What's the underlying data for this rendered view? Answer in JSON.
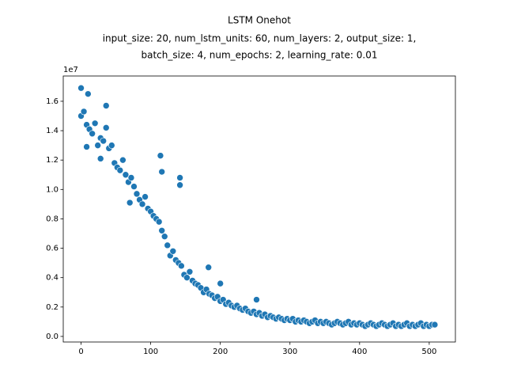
{
  "chart_data": {
    "type": "scatter",
    "title": "LSTM Onehot",
    "subtitle": [
      "input_size: 20, num_lstm_units: 60, num_layers: 2, output_size: 1,",
      "batch_size: 4, num_epochs: 2, learning_rate: 0.01"
    ],
    "offset_label": "1e7",
    "color": "#1f77b4",
    "x": [
      0,
      4,
      8,
      12,
      16,
      20,
      24,
      28,
      32,
      36,
      40,
      44,
      48,
      52,
      56,
      60,
      64,
      68,
      72,
      76,
      80,
      84,
      88,
      92,
      96,
      100,
      104,
      108,
      112,
      116,
      120,
      124,
      128,
      132,
      136,
      140,
      144,
      148,
      152,
      156,
      160,
      164,
      168,
      172,
      176,
      180,
      184,
      188,
      192,
      196,
      200,
      204,
      208,
      212,
      216,
      220,
      224,
      228,
      232,
      236,
      240,
      244,
      248,
      252,
      256,
      260,
      264,
      268,
      272,
      276,
      280,
      284,
      288,
      292,
      296,
      300,
      304,
      308,
      312,
      316,
      320,
      324,
      328,
      332,
      336,
      340,
      344,
      348,
      352,
      356,
      360,
      364,
      368,
      372,
      376,
      380,
      384,
      388,
      392,
      396,
      400,
      404,
      408,
      412,
      416,
      420,
      424,
      428,
      432,
      436,
      440,
      444,
      448,
      452,
      456,
      460,
      464,
      468,
      472,
      476,
      480,
      484,
      488,
      492,
      496,
      500,
      504,
      508,
      0,
      10,
      36,
      114,
      142,
      142,
      252,
      200,
      183,
      70,
      28,
      116,
      8
    ],
    "values": [
      1.5,
      1.53,
      1.44,
      1.41,
      1.38,
      1.45,
      1.3,
      1.35,
      1.33,
      1.42,
      1.28,
      1.3,
      1.18,
      1.15,
      1.13,
      1.2,
      1.1,
      1.05,
      1.08,
      1.02,
      0.97,
      0.93,
      0.9,
      0.95,
      0.87,
      0.85,
      0.82,
      0.8,
      0.78,
      0.72,
      0.68,
      0.62,
      0.55,
      0.58,
      0.52,
      0.5,
      0.48,
      0.42,
      0.4,
      0.44,
      0.38,
      0.36,
      0.35,
      0.33,
      0.3,
      0.32,
      0.29,
      0.28,
      0.26,
      0.27,
      0.24,
      0.25,
      0.22,
      0.23,
      0.21,
      0.2,
      0.21,
      0.19,
      0.18,
      0.19,
      0.17,
      0.16,
      0.17,
      0.15,
      0.16,
      0.14,
      0.15,
      0.13,
      0.14,
      0.13,
      0.12,
      0.13,
      0.12,
      0.11,
      0.12,
      0.11,
      0.12,
      0.1,
      0.11,
      0.1,
      0.11,
      0.1,
      0.09,
      0.1,
      0.11,
      0.09,
      0.1,
      0.09,
      0.1,
      0.09,
      0.08,
      0.09,
      0.1,
      0.09,
      0.08,
      0.09,
      0.1,
      0.08,
      0.09,
      0.08,
      0.09,
      0.08,
      0.07,
      0.08,
      0.09,
      0.08,
      0.07,
      0.08,
      0.09,
      0.08,
      0.07,
      0.08,
      0.09,
      0.07,
      0.08,
      0.07,
      0.08,
      0.09,
      0.07,
      0.08,
      0.07,
      0.08,
      0.09,
      0.07,
      0.08,
      0.07,
      0.08,
      0.08,
      1.69,
      1.65,
      1.57,
      1.23,
      1.08,
      1.03,
      0.25,
      0.36,
      0.47,
      0.91,
      1.21,
      1.12,
      1.29
    ],
    "xlim": [
      -25.6,
      537.6
    ],
    "ylim": [
      -0.038,
      1.772
    ],
    "xticks": [
      0,
      100,
      200,
      300,
      400,
      500
    ],
    "yticks": [
      {
        "value": 0,
        "label": "0.0"
      },
      {
        "value": 0.2,
        "label": "0.2"
      },
      {
        "value": 0.4,
        "label": "0.4"
      },
      {
        "value": 0.6,
        "label": "0.6"
      },
      {
        "value": 0.8,
        "label": "0.8"
      },
      {
        "value": 1.0,
        "label": "1.0"
      },
      {
        "value": 1.2,
        "label": "1.2"
      },
      {
        "value": 1.4,
        "label": "1.4"
      },
      {
        "value": 1.6,
        "label": "1.6"
      }
    ]
  }
}
